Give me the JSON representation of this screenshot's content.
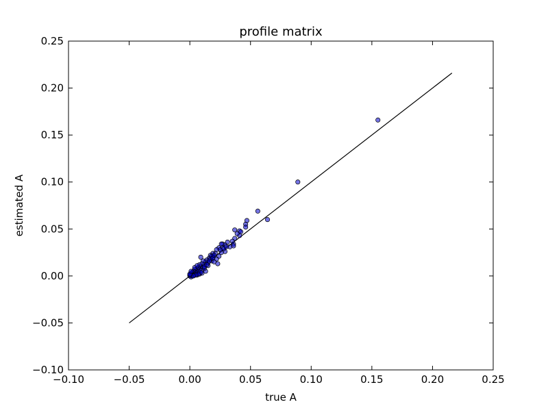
{
  "chart_data": {
    "type": "scatter",
    "title": "profile matrix",
    "xlabel": "true A",
    "ylabel": "estimated A",
    "xlim": [
      -0.1,
      0.25
    ],
    "ylim": [
      -0.1,
      0.25
    ],
    "xticks": [
      "−0.10",
      "−0.05",
      "0.00",
      "0.05",
      "0.10",
      "0.15",
      "0.20",
      "0.25"
    ],
    "yticks": [
      "−0.10",
      "−0.05",
      "0.00",
      "0.05",
      "0.10",
      "0.15",
      "0.20",
      "0.25"
    ],
    "xtick_values": [
      -0.1,
      -0.05,
      0.0,
      0.05,
      0.1,
      0.15,
      0.2,
      0.25
    ],
    "ytick_values": [
      -0.1,
      -0.05,
      0.0,
      0.05,
      0.1,
      0.15,
      0.2,
      0.25
    ],
    "grid": false,
    "reference_line": {
      "x": [
        -0.05,
        0.216
      ],
      "y": [
        -0.05,
        0.216
      ],
      "color": "#000000"
    },
    "marker_color": "#0000cc",
    "points": [
      [
        0.155,
        0.166
      ],
      [
        0.089,
        0.1
      ],
      [
        0.056,
        0.069
      ],
      [
        0.064,
        0.06
      ],
      [
        0.047,
        0.059
      ],
      [
        0.046,
        0.055
      ],
      [
        0.046,
        0.052
      ],
      [
        0.037,
        0.049
      ],
      [
        0.041,
        0.048
      ],
      [
        0.042,
        0.047
      ],
      [
        0.041,
        0.043
      ],
      [
        0.037,
        0.04
      ],
      [
        0.035,
        0.037
      ],
      [
        0.031,
        0.036
      ],
      [
        0.036,
        0.034
      ],
      [
        0.036,
        0.032
      ],
      [
        0.027,
        0.034
      ],
      [
        0.029,
        0.033
      ],
      [
        0.026,
        0.034
      ],
      [
        0.027,
        0.03
      ],
      [
        0.029,
        0.026
      ],
      [
        0.024,
        0.03
      ],
      [
        0.022,
        0.028
      ],
      [
        0.021,
        0.024
      ],
      [
        0.019,
        0.024
      ],
      [
        0.024,
        0.021
      ],
      [
        0.022,
        0.018
      ],
      [
        0.019,
        0.02
      ],
      [
        0.017,
        0.022
      ],
      [
        0.016,
        0.019
      ],
      [
        0.018,
        0.016
      ],
      [
        0.02,
        0.015
      ],
      [
        0.023,
        0.013
      ],
      [
        0.014,
        0.017
      ],
      [
        0.013,
        0.015
      ],
      [
        0.012,
        0.012
      ],
      [
        0.015,
        0.011
      ],
      [
        0.011,
        0.016
      ],
      [
        0.01,
        0.013
      ],
      [
        0.009,
        0.02
      ],
      [
        0.009,
        0.01
      ],
      [
        0.008,
        0.012
      ],
      [
        0.011,
        0.009
      ],
      [
        0.01,
        0.006
      ],
      [
        0.008,
        0.007
      ],
      [
        0.007,
        0.009
      ],
      [
        0.006,
        0.008
      ],
      [
        0.007,
        0.005
      ],
      [
        0.005,
        0.006
      ],
      [
        0.004,
        0.007
      ],
      [
        0.006,
        0.004
      ],
      [
        0.005,
        0.003
      ],
      [
        0.004,
        0.004
      ],
      [
        0.003,
        0.005
      ],
      [
        0.003,
        0.003
      ],
      [
        0.002,
        0.004
      ],
      [
        0.002,
        0.002
      ],
      [
        0.001,
        0.003
      ],
      [
        0.001,
        0.001
      ],
      [
        0.0,
        0.0
      ],
      [
        0.001,
        -0.001
      ],
      [
        0.002,
        0.0
      ],
      [
        0.004,
        0.001
      ],
      [
        0.006,
        0.001
      ],
      [
        0.008,
        0.002
      ],
      [
        0.01,
        0.003
      ],
      [
        0.013,
        0.005
      ],
      [
        0.012,
        0.008
      ],
      [
        0.015,
        0.014
      ],
      [
        0.017,
        0.018
      ],
      [
        0.018,
        0.021
      ],
      [
        0.019,
        0.019
      ],
      [
        0.02,
        0.022
      ],
      [
        0.012,
        0.01
      ],
      [
        0.014,
        0.012
      ],
      [
        0.016,
        0.016
      ],
      [
        0.009,
        0.004
      ],
      [
        0.007,
        0.002
      ],
      [
        0.005,
        0.001
      ],
      [
        0.003,
        0.0
      ],
      [
        0.0,
        0.001
      ],
      [
        0.0,
        0.002
      ],
      [
        0.001,
        0.005
      ],
      [
        0.004,
        0.009
      ],
      [
        0.006,
        0.011
      ],
      [
        0.026,
        0.025
      ],
      [
        0.028,
        0.029
      ],
      [
        0.033,
        0.031
      ],
      [
        0.039,
        0.045
      ],
      [
        0.025,
        0.028
      ],
      [
        0.03,
        0.031
      ]
    ]
  }
}
